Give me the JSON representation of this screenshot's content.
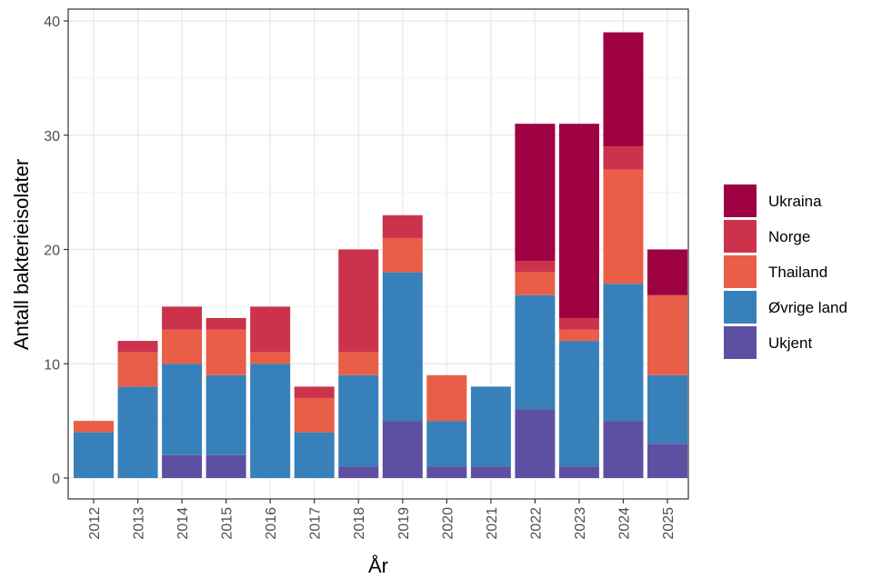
{
  "chart_data": {
    "type": "bar",
    "stacked": true,
    "xlabel": "År",
    "ylabel": "Antall bakterieisolater",
    "ylim": [
      0,
      40
    ],
    "yticks": [
      0,
      10,
      20,
      30,
      40
    ],
    "grid": true,
    "legend_position": "right",
    "categories": [
      "2012",
      "2013",
      "2014",
      "2015",
      "2016",
      "2017",
      "2018",
      "2019",
      "2020",
      "2021",
      "2022",
      "2023",
      "2024",
      "2025"
    ],
    "series": [
      {
        "name": "Ukjent",
        "color": "#5E4FA2",
        "values": [
          0,
          0,
          2,
          2,
          0,
          0,
          1,
          5,
          1,
          1,
          6,
          1,
          5,
          3
        ]
      },
      {
        "name": "Øvrige land",
        "color": "#3880BA",
        "values": [
          4,
          8,
          8,
          7,
          10,
          4,
          8,
          13,
          4,
          7,
          10,
          11,
          12,
          6
        ]
      },
      {
        "name": "Thailand",
        "color": "#E95E47",
        "values": [
          1,
          3,
          3,
          4,
          1,
          3,
          2,
          3,
          4,
          0,
          2,
          1,
          10,
          7
        ]
      },
      {
        "name": "Norge",
        "color": "#CB334C",
        "values": [
          0,
          1,
          2,
          1,
          4,
          1,
          9,
          2,
          0,
          0,
          1,
          1,
          2,
          0
        ]
      },
      {
        "name": "Ukraina",
        "color": "#9E0142",
        "values": [
          0,
          0,
          0,
          0,
          0,
          0,
          0,
          0,
          0,
          0,
          12,
          17,
          10,
          4
        ]
      }
    ],
    "legend_order": [
      "Ukraina",
      "Norge",
      "Thailand",
      "Øvrige land",
      "Ukjent"
    ]
  }
}
